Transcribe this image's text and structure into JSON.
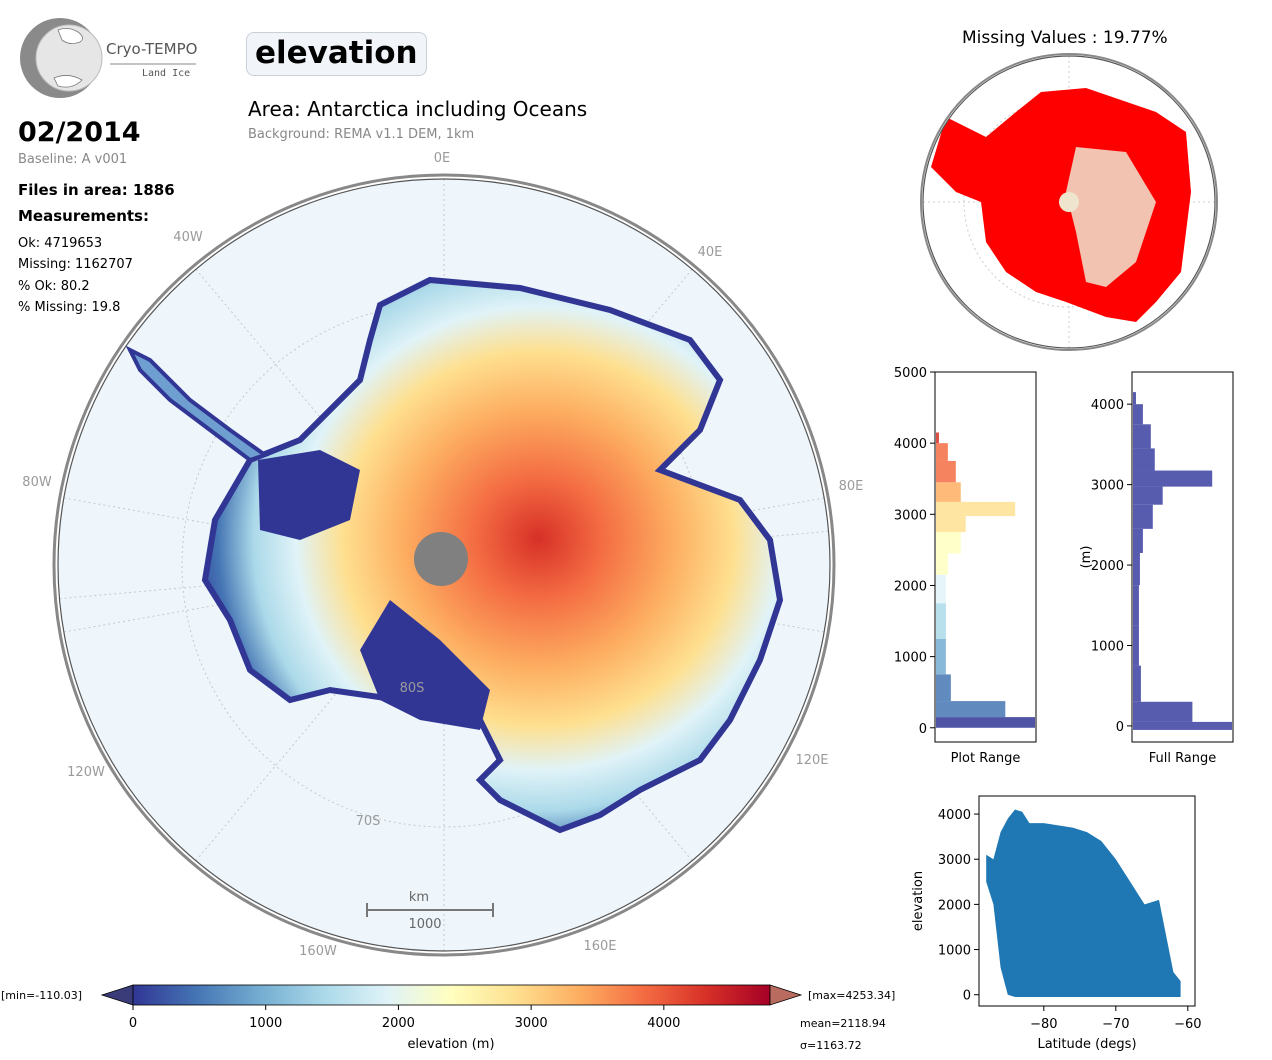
{
  "logo": {
    "name": "Cryo-TEMPO",
    "subtitle": "Land Ice"
  },
  "variable": "elevation",
  "area_title": "Area: Antarctica including Oceans",
  "background_note": "Background: REMA v1.1 DEM, 1km",
  "date": "02/2014",
  "baseline": "Baseline: A v001",
  "files_in_area": "Files in area: 1886",
  "measurements_heading": "Measurements:",
  "stats": {
    "ok": "Ok: 4719653",
    "missing": "Missing: 1162707",
    "pct_ok": "% Ok: 80.2",
    "pct_missing": "% Missing: 19.8"
  },
  "map_labels": {
    "lon_0E": "0E",
    "lon_40E": "40E",
    "lon_80E": "80E",
    "lon_120E": "120E",
    "lon_160E": "160E",
    "lon_40W": "40W",
    "lon_80W": "80W",
    "lon_120W": "120W",
    "lon_160W": "160W",
    "lat_80S": "80S",
    "lat_70S": "70S"
  },
  "scale_bar": {
    "unit": "km",
    "value": "1000"
  },
  "missing_title": "Missing Values : 19.77%",
  "colors": {
    "missing": "#ff0000",
    "scatter": "#1f77b4",
    "full_hist": "#3b3fa0",
    "low": "#313695",
    "high": "#a50026"
  },
  "colorbar": {
    "min_label": "[min=-110.03]",
    "max_label": "[max=4253.34]",
    "ticks": [
      "0",
      "1000",
      "2000",
      "3000",
      "4000"
    ],
    "label": "elevation (m)",
    "mean": "mean=2118.94",
    "sigma": "σ=1163.72",
    "range": [
      0,
      4800
    ]
  },
  "chart_data": [
    {
      "type": "bar",
      "title": "",
      "xlabel": "Plot Range",
      "ylabel": "",
      "ylim": [
        -200,
        5000
      ],
      "yticks": [
        "0",
        "1000",
        "2000",
        "3000",
        "4000",
        "5000"
      ],
      "bins_center_m": [
        50,
        250,
        500,
        1000,
        1500,
        2000,
        2300,
        2600,
        2900,
        3050,
        3300,
        3600,
        3900,
        4100
      ],
      "relative_counts": [
        1.0,
        0.7,
        0.15,
        0.1,
        0.1,
        0.1,
        0.12,
        0.25,
        0.3,
        0.8,
        0.25,
        0.2,
        0.12,
        0.03
      ]
    },
    {
      "type": "bar",
      "title": "",
      "xlabel": "Full Range",
      "ylabel": "(m)",
      "ylim": [
        -200,
        4400
      ],
      "yticks": [
        "0",
        "1000",
        "2000",
        "3000",
        "4000"
      ],
      "bins_center_m": [
        0,
        100,
        500,
        1000,
        1500,
        2000,
        2300,
        2600,
        2900,
        3050,
        3300,
        3600,
        3900,
        4100
      ],
      "relative_counts": [
        1.0,
        0.6,
        0.08,
        0.06,
        0.06,
        0.07,
        0.1,
        0.2,
        0.3,
        0.8,
        0.22,
        0.18,
        0.1,
        0.03
      ]
    },
    {
      "type": "scatter",
      "title": "",
      "xlabel": "Latitude (degs)",
      "ylabel": "elevation",
      "xlim": [
        -89,
        -59
      ],
      "ylim": [
        -250,
        4400
      ],
      "xticks": [
        "−80",
        "−70",
        "−60"
      ],
      "yticks": [
        "0",
        "1000",
        "2000",
        "3000",
        "4000"
      ],
      "envelope": {
        "lat": [
          -88,
          -87,
          -86,
          -85,
          -84,
          -83,
          -82,
          -80,
          -78,
          -76,
          -74,
          -72,
          -70,
          -68,
          -66,
          -64,
          -62,
          -61
        ],
        "upper": [
          3100,
          3000,
          3600,
          3900,
          4100,
          4050,
          3800,
          3800,
          3750,
          3700,
          3600,
          3400,
          3000,
          2500,
          2000,
          2100,
          500,
          300
        ],
        "lower": [
          2500,
          2000,
          600,
          0,
          -50,
          -50,
          -50,
          -50,
          -50,
          -50,
          -50,
          -50,
          -50,
          -50,
          -50,
          -50,
          -50,
          -50
        ]
      }
    }
  ]
}
